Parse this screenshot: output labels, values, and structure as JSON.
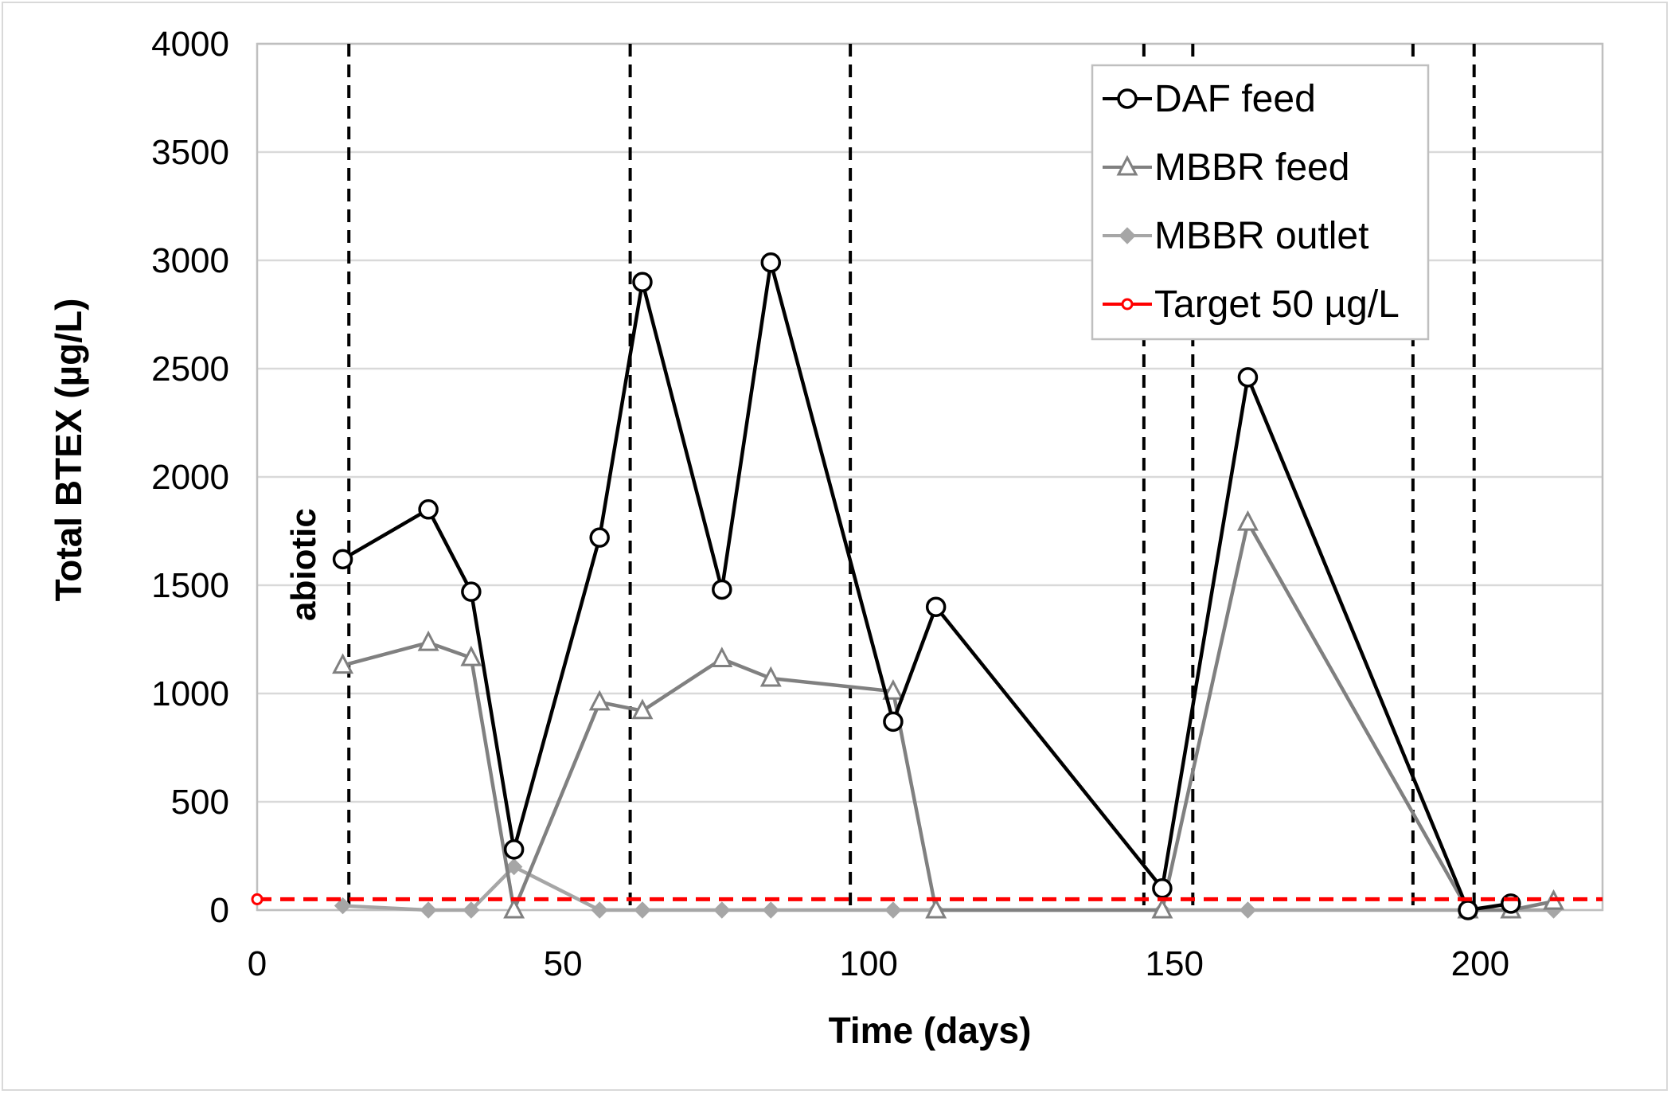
{
  "chart_data": {
    "type": "line",
    "xlabel": "Time (days)",
    "ylabel": "Total BTEX (µg/L)",
    "xlim": [
      0,
      220
    ],
    "ylim": [
      0,
      4000
    ],
    "xticks": [
      0,
      50,
      100,
      150,
      200
    ],
    "yticks": [
      0,
      500,
      1000,
      1500,
      2000,
      2500,
      3000,
      3500,
      4000
    ],
    "grid": "horizontal",
    "legend_position": "top-right",
    "annotation": "abiotic",
    "phase_lines_days": [
      15,
      61,
      97,
      145,
      153,
      189,
      199
    ],
    "series": [
      {
        "name": "DAF feed",
        "color": "#000000",
        "marker": "circle",
        "x": [
          14,
          28,
          35,
          42,
          56,
          63,
          76,
          84,
          104,
          111,
          148,
          162,
          198,
          205
        ],
        "y": [
          1620,
          1850,
          1470,
          280,
          1720,
          2900,
          1480,
          2990,
          870,
          1400,
          100,
          2460,
          0,
          30
        ]
      },
      {
        "name": "MBBR feed",
        "color": "#808080",
        "marker": "triangle",
        "x": [
          14,
          28,
          35,
          42,
          56,
          63,
          76,
          84,
          104,
          111,
          148,
          162,
          198,
          205,
          212
        ],
        "y": [
          1130,
          1235,
          1165,
          0,
          960,
          920,
          1160,
          1070,
          1010,
          0,
          0,
          1790,
          0,
          0,
          40
        ]
      },
      {
        "name": "MBBR outlet",
        "color": "#a6a6a6",
        "marker": "diamond",
        "x": [
          14,
          28,
          35,
          42,
          56,
          63,
          76,
          84,
          104,
          111,
          148,
          162,
          198,
          205,
          212
        ],
        "y": [
          20,
          0,
          0,
          200,
          0,
          0,
          0,
          0,
          0,
          0,
          0,
          0,
          0,
          0,
          0
        ]
      },
      {
        "name": "Target 50 µg/L",
        "color": "#ff0000",
        "marker": "circle-small",
        "dashed": true,
        "x": [
          0,
          220
        ],
        "y": [
          50,
          50
        ]
      }
    ]
  }
}
